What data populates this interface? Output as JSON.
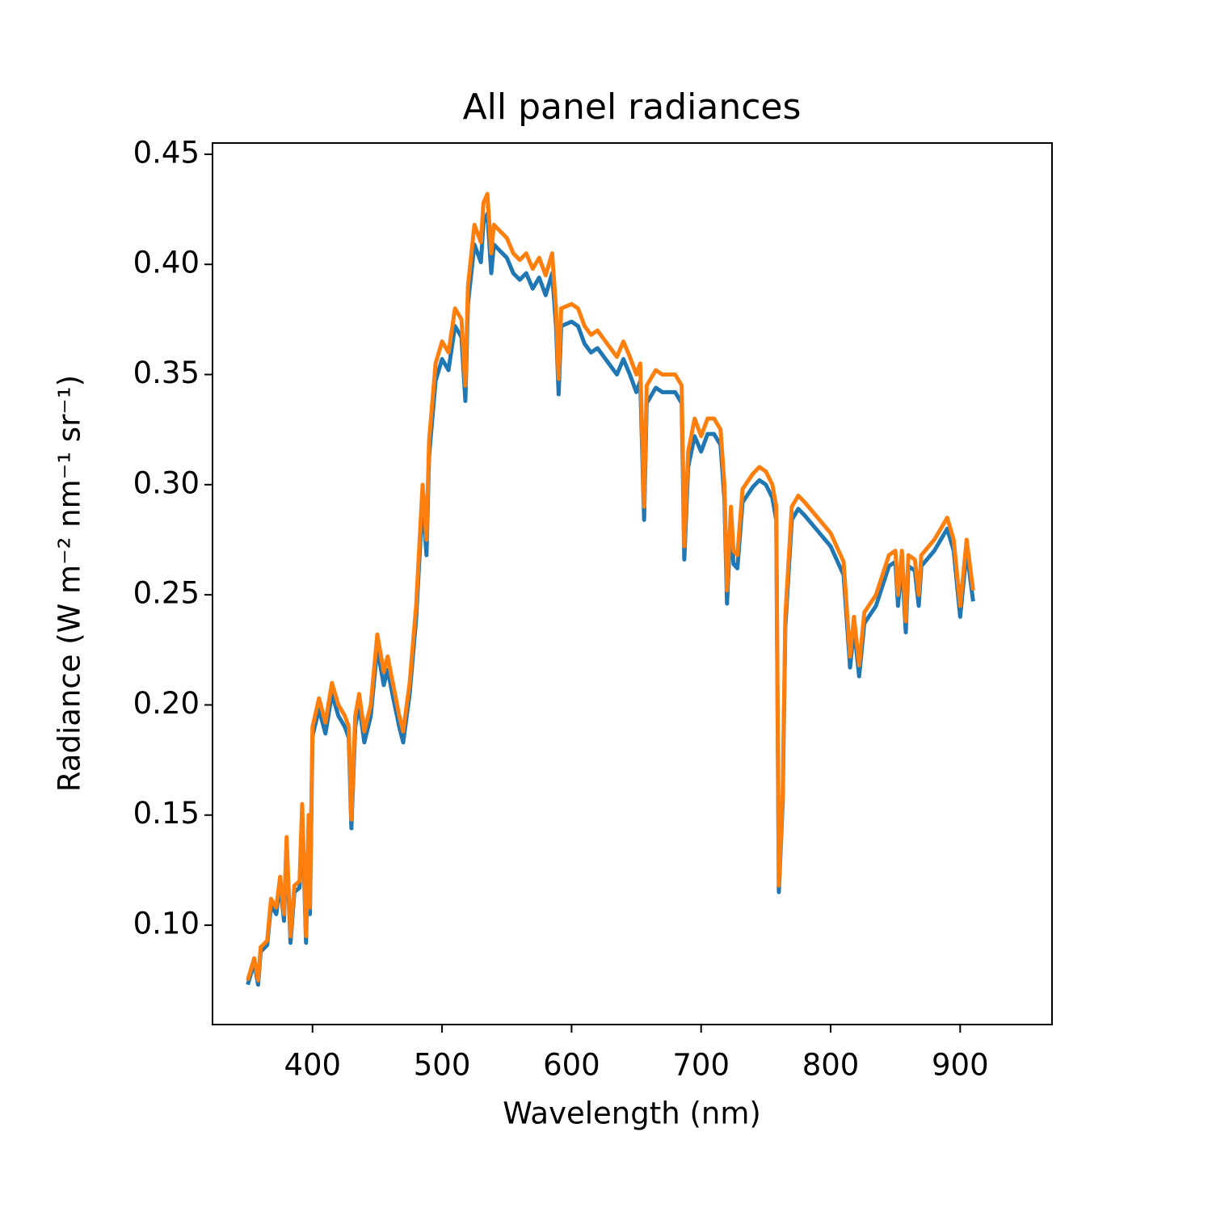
{
  "chart_data": {
    "type": "line",
    "title": "All panel radiances",
    "xlabel": "Wavelength (nm)",
    "ylabel": "Radiance (W m⁻² nm⁻¹ sr⁻¹)",
    "xlim": [
      322.8,
      970.9
    ],
    "ylim": [
      0.0549,
      0.4551
    ],
    "xticks": [
      400,
      500,
      600,
      700,
      800,
      900
    ],
    "yticks": [
      {
        "value": 0.1,
        "label": "0.10"
      },
      0.15,
      {
        "value": 0.2,
        "label": "0.20"
      },
      0.25,
      {
        "value": 0.3,
        "label": "0.30"
      },
      0.35,
      {
        "value": 0.4,
        "label": "0.40"
      },
      0.45
    ],
    "grid": false,
    "x": [
      350,
      355,
      358,
      360,
      365,
      368,
      372,
      375,
      378,
      380,
      383,
      386,
      390,
      392,
      395,
      397,
      398,
      400,
      405,
      410,
      415,
      420,
      425,
      428,
      430,
      433,
      436,
      440,
      445,
      450,
      455,
      458,
      462,
      467,
      470,
      475,
      480,
      485,
      488,
      490,
      495,
      500,
      505,
      510,
      515,
      518,
      520,
      525,
      530,
      532,
      535,
      538,
      540,
      545,
      550,
      555,
      560,
      565,
      570,
      575,
      580,
      585,
      588,
      590,
      592,
      600,
      605,
      610,
      615,
      620,
      630,
      635,
      640,
      645,
      650,
      653,
      656,
      658,
      665,
      670,
      680,
      685,
      687,
      690,
      695,
      700,
      705,
      710,
      715,
      718,
      720,
      723,
      725,
      728,
      732,
      740,
      745,
      750,
      755,
      758,
      760,
      763,
      765,
      770,
      775,
      780,
      790,
      800,
      810,
      815,
      818,
      822,
      826,
      835,
      845,
      850,
      852,
      855,
      858,
      860,
      865,
      868,
      870,
      880,
      890,
      895,
      900,
      905,
      910
    ],
    "series": [
      {
        "color": "#1f77b4",
        "values": [
          0.073,
          0.083,
          0.073,
          0.088,
          0.091,
          0.109,
          0.105,
          0.119,
          0.102,
          0.137,
          0.092,
          0.115,
          0.117,
          0.151,
          0.092,
          0.146,
          0.105,
          0.186,
          0.198,
          0.187,
          0.205,
          0.195,
          0.19,
          0.185,
          0.144,
          0.19,
          0.2,
          0.183,
          0.195,
          0.226,
          0.209,
          0.216,
          0.204,
          0.19,
          0.183,
          0.205,
          0.239,
          0.293,
          0.268,
          0.313,
          0.347,
          0.357,
          0.352,
          0.372,
          0.367,
          0.338,
          0.382,
          0.409,
          0.401,
          0.419,
          0.423,
          0.396,
          0.409,
          0.406,
          0.403,
          0.396,
          0.393,
          0.396,
          0.389,
          0.394,
          0.386,
          0.396,
          0.372,
          0.341,
          0.372,
          0.374,
          0.372,
          0.364,
          0.36,
          0.362,
          0.354,
          0.35,
          0.357,
          0.35,
          0.342,
          0.347,
          0.284,
          0.337,
          0.344,
          0.342,
          0.342,
          0.337,
          0.266,
          0.308,
          0.322,
          0.315,
          0.323,
          0.323,
          0.318,
          0.293,
          0.246,
          0.284,
          0.264,
          0.262,
          0.292,
          0.299,
          0.302,
          0.3,
          0.294,
          0.284,
          0.115,
          0.156,
          0.235,
          0.284,
          0.289,
          0.286,
          0.279,
          0.272,
          0.259,
          0.217,
          0.235,
          0.213,
          0.237,
          0.245,
          0.263,
          0.265,
          0.245,
          0.265,
          0.233,
          0.263,
          0.261,
          0.245,
          0.263,
          0.27,
          0.28,
          0.27,
          0.24,
          0.27,
          0.247
        ]
      },
      {
        "color": "#ff7f0e",
        "values": [
          0.075,
          0.085,
          0.075,
          0.09,
          0.093,
          0.112,
          0.108,
          0.122,
          0.105,
          0.14,
          0.095,
          0.118,
          0.12,
          0.155,
          0.095,
          0.15,
          0.108,
          0.19,
          0.203,
          0.192,
          0.21,
          0.2,
          0.195,
          0.19,
          0.148,
          0.195,
          0.205,
          0.188,
          0.2,
          0.232,
          0.215,
          0.222,
          0.21,
          0.195,
          0.188,
          0.21,
          0.245,
          0.3,
          0.275,
          0.32,
          0.355,
          0.365,
          0.36,
          0.38,
          0.375,
          0.345,
          0.39,
          0.418,
          0.41,
          0.428,
          0.432,
          0.405,
          0.418,
          0.415,
          0.412,
          0.405,
          0.402,
          0.405,
          0.398,
          0.403,
          0.395,
          0.405,
          0.38,
          0.348,
          0.38,
          0.382,
          0.38,
          0.372,
          0.368,
          0.37,
          0.362,
          0.358,
          0.365,
          0.358,
          0.35,
          0.355,
          0.29,
          0.345,
          0.352,
          0.35,
          0.35,
          0.345,
          0.272,
          0.315,
          0.33,
          0.322,
          0.33,
          0.33,
          0.325,
          0.3,
          0.252,
          0.29,
          0.27,
          0.268,
          0.298,
          0.305,
          0.308,
          0.306,
          0.3,
          0.29,
          0.118,
          0.16,
          0.24,
          0.29,
          0.295,
          0.292,
          0.285,
          0.278,
          0.265,
          0.222,
          0.24,
          0.218,
          0.242,
          0.25,
          0.268,
          0.27,
          0.25,
          0.27,
          0.238,
          0.268,
          0.266,
          0.25,
          0.268,
          0.275,
          0.285,
          0.275,
          0.245,
          0.275,
          0.252
        ]
      }
    ]
  }
}
